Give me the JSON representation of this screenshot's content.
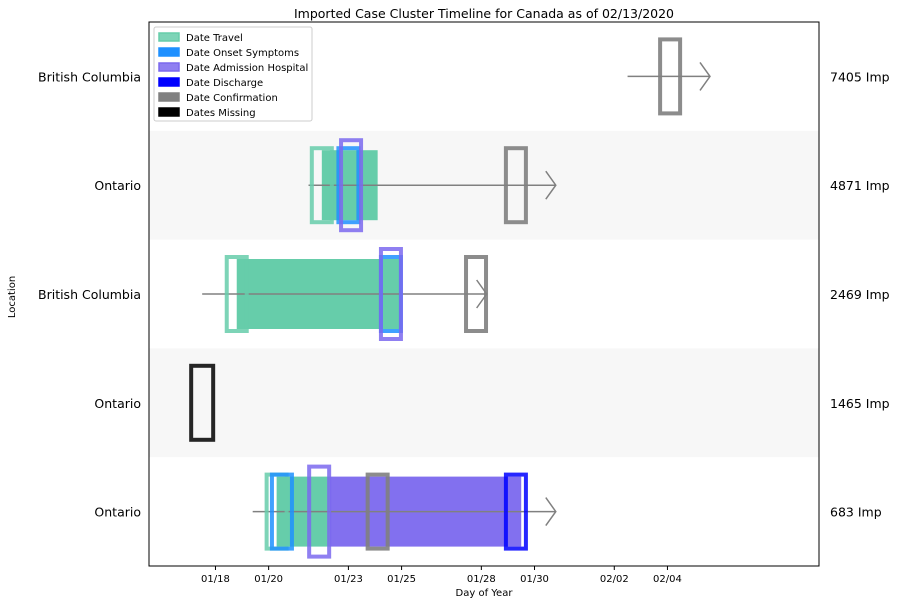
{
  "chart_data": {
    "type": "timeline",
    "title": "Imported Case Cluster Timeline for Canada as of 02/13/2020",
    "xlabel": "Day of Year",
    "ylabel": "Location",
    "x_ticks": [
      "01/18",
      "01/20",
      "01/23",
      "01/25",
      "01/28",
      "01/30",
      "02/02",
      "02/04"
    ],
    "x_tick_days": [
      18,
      20,
      23,
      25,
      28,
      30,
      33,
      35
    ],
    "xlim": [
      15.5,
      40.7
    ],
    "legend": {
      "placement": "top-left",
      "entries": [
        {
          "label": "Date Travel",
          "color": "#66cdaa"
        },
        {
          "label": "Date Onset Symptoms",
          "color": "#1e90ff"
        },
        {
          "label": "Date Admission Hospital",
          "color": "#7b68ee"
        },
        {
          "label": "Date Discharge",
          "color": "#0000ff"
        },
        {
          "label": "Date Confirmation",
          "color": "#808080"
        },
        {
          "label": "Dates Missing",
          "color": "#000000"
        }
      ]
    },
    "rows": [
      {
        "location": "British Columbia",
        "case_label": "7405 Imp",
        "shaded": false,
        "arrow": [
          33.5,
          36.6
        ],
        "travel": null,
        "markers": [
          {
            "type": "confirmation",
            "day": 35.1
          }
        ]
      },
      {
        "location": "Ontario",
        "case_label": "4871 Imp",
        "shaded": true,
        "arrow": [
          21.5,
          30.8
        ],
        "travel": [
          22.0,
          24.1
        ],
        "markers": [
          {
            "type": "travel",
            "day": 22.0
          },
          {
            "type": "onset",
            "day": 23.0
          },
          {
            "type": "admission",
            "day": 23.1
          },
          {
            "type": "confirmation",
            "day": 29.3
          }
        ]
      },
      {
        "location": "British Columbia",
        "case_label": "2469 Imp",
        "shaded": false,
        "arrow": [
          17.5,
          28.2
        ],
        "travel": [
          18.8,
          25.0
        ],
        "markers": [
          {
            "type": "travel",
            "day": 18.8
          },
          {
            "type": "onset",
            "day": 24.6
          },
          {
            "type": "admission",
            "day": 24.6
          },
          {
            "type": "confirmation",
            "day": 27.8
          }
        ]
      },
      {
        "location": "Ontario",
        "case_label": "1465 Imp",
        "shaded": true,
        "arrow": null,
        "travel": null,
        "markers": [
          {
            "type": "missing",
            "day": 17.5
          }
        ]
      },
      {
        "location": "Ontario",
        "case_label": "683 Imp",
        "shaded": false,
        "arrow": [
          19.4,
          30.8
        ],
        "travel": [
          20.3,
          22.3
        ],
        "admission_span": [
          22.3,
          29.5
        ],
        "markers": [
          {
            "type": "travel",
            "day": 20.3
          },
          {
            "type": "onset",
            "day": 20.5
          },
          {
            "type": "admission",
            "day": 21.9
          },
          {
            "type": "confirmation",
            "day": 24.1
          },
          {
            "type": "discharge",
            "day": 29.3
          }
        ]
      }
    ]
  }
}
